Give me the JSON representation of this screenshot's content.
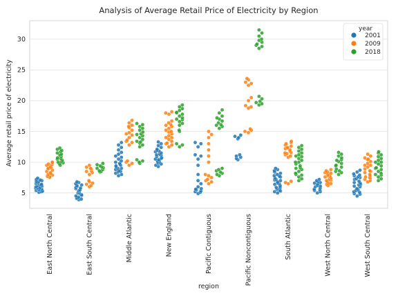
{
  "chart_data": {
    "type": "scatter",
    "subtype": "swarm/strip",
    "title": "Analysis of Average Retail Price of Electricity by Region",
    "xlabel": "region",
    "ylabel": "Average retail price of electricity",
    "ylim": [
      2.5,
      33
    ],
    "yticks": [
      5,
      10,
      15,
      20,
      25,
      30
    ],
    "grid": true,
    "legend": {
      "title": "year",
      "placement": "top-right"
    },
    "categories": [
      "East North Central",
      "East South Central",
      "Middle Atlantic",
      "New England",
      "Pacific Contiguous",
      "Pacific Noncontiguous",
      "South Atlantic",
      "West North Central",
      "West South Central"
    ],
    "series": [
      {
        "name": "2001",
        "color": "#1f77b4",
        "values": [
          [
            5.1,
            5.2,
            5.3,
            5.4,
            5.5,
            5.6,
            5.7,
            5.8,
            5.9,
            6.0,
            6.1,
            6.2,
            6.3,
            6.4,
            6.5,
            6.6,
            6.7,
            6.8,
            6.9,
            7.0,
            7.1,
            7.2,
            7.4,
            5.5,
            6.0,
            6.5,
            5.8,
            6.2
          ],
          [
            3.9,
            4.0,
            4.1,
            4.3,
            4.5,
            4.7,
            4.9,
            5.1,
            5.3,
            5.5,
            5.7,
            5.9,
            6.1,
            6.3,
            6.5,
            6.7,
            6.8,
            4.2,
            4.6,
            5.0,
            5.4,
            5.8,
            6.2
          ],
          [
            7.8,
            8.0,
            8.2,
            8.4,
            8.6,
            8.8,
            9.0,
            9.2,
            9.4,
            9.6,
            9.8,
            10.0,
            10.2,
            10.5,
            10.8,
            11.0,
            11.3,
            11.6,
            12.0,
            12.4,
            12.8,
            13.2,
            8.5,
            9.0,
            9.5
          ],
          [
            9.3,
            9.5,
            9.7,
            9.9,
            10.1,
            10.3,
            10.5,
            10.7,
            10.9,
            11.1,
            11.3,
            11.5,
            11.7,
            11.9,
            12.1,
            12.4,
            12.7,
            13.0,
            13.3,
            10.0,
            10.6,
            11.2,
            11.8,
            9.8,
            10.4
          ],
          [
            4.9,
            5.1,
            5.3,
            5.5,
            5.7,
            6.0,
            6.5,
            7.0,
            8.0,
            9.5,
            10.5,
            11.2,
            12.5,
            13.0,
            13.2,
            5.2,
            5.6,
            11.0
          ],
          [
            10.4,
            10.6,
            10.8,
            11.0,
            11.2,
            13.8,
            14.0,
            14.2,
            14.4
          ],
          [
            5.0,
            5.2,
            5.4,
            5.6,
            5.8,
            6.0,
            6.2,
            6.4,
            6.6,
            6.8,
            7.0,
            7.2,
            7.4,
            7.6,
            7.8,
            8.0,
            8.2,
            8.4,
            8.6,
            8.8,
            9.0,
            5.3,
            5.9,
            6.5,
            7.1,
            7.7
          ],
          [
            5.0,
            5.2,
            5.4,
            5.6,
            5.8,
            6.0,
            6.2,
            6.4,
            6.6,
            6.8,
            7.0,
            7.2,
            5.5,
            6.1,
            6.7
          ],
          [
            4.5,
            4.8,
            5.1,
            5.4,
            5.7,
            6.0,
            6.3,
            6.6,
            6.9,
            7.2,
            7.5,
            7.8,
            8.1,
            8.4,
            8.7,
            4.9,
            5.5,
            6.1,
            6.7,
            7.3,
            7.9,
            5.2,
            6.4,
            7.6
          ]
        ]
      },
      {
        "name": "2009",
        "color": "#ff7f0e",
        "values": [
          [
            7.5,
            7.7,
            7.9,
            8.1,
            8.3,
            8.5,
            8.7,
            8.9,
            9.1,
            9.3,
            9.5,
            9.7,
            9.9,
            10.0,
            7.6,
            8.0,
            9.0,
            9.6
          ],
          [
            6.0,
            6.2,
            6.4,
            6.6,
            6.8,
            7.0,
            8.0,
            8.3,
            8.6,
            8.9,
            9.2,
            9.5,
            8.5,
            9.0
          ],
          [
            9.5,
            9.8,
            10.0,
            10.2,
            12.8,
            13.2,
            13.6,
            14.0,
            14.4,
            14.8,
            15.2,
            15.6,
            16.0,
            16.4,
            16.8,
            13.4,
            14.6,
            15.8
          ],
          [
            12.5,
            12.8,
            13.1,
            13.4,
            13.7,
            14.0,
            14.3,
            14.6,
            14.9,
            15.2,
            15.5,
            15.8,
            16.1,
            16.4,
            16.7,
            17.8,
            18.0,
            18.2,
            13.0,
            14.0,
            15.0,
            16.0
          ],
          [
            6.5,
            6.8,
            7.0,
            7.2,
            7.5,
            7.8,
            8.0,
            10.0,
            11.0,
            12.0,
            13.0,
            14.0,
            14.5,
            15.0
          ],
          [
            14.8,
            15.0,
            15.2,
            15.4,
            18.8,
            19.0,
            19.2,
            20.0,
            20.5,
            22.5,
            23.0,
            23.4,
            23.6,
            22.8
          ],
          [
            6.5,
            6.7,
            6.9,
            10.8,
            11.0,
            11.2,
            11.4,
            11.6,
            11.8,
            12.0,
            12.2,
            12.4,
            12.6,
            12.8,
            13.0,
            13.2,
            13.4,
            11.5,
            12.3
          ],
          [
            6.2,
            6.4,
            6.6,
            6.8,
            7.0,
            7.2,
            7.4,
            7.6,
            7.8,
            8.0,
            8.2,
            8.4,
            8.6,
            8.8,
            6.5,
            7.1,
            7.7,
            8.3
          ],
          [
            6.8,
            7.0,
            7.2,
            7.4,
            7.6,
            7.8,
            8.0,
            8.3,
            8.6,
            8.9,
            9.2,
            9.5,
            9.8,
            10.1,
            10.4,
            10.7,
            11.0,
            11.3,
            7.5,
            8.5,
            9.5,
            10.5
          ]
        ]
      },
      {
        "name": "2018",
        "color": "#2ca02c",
        "values": [
          [
            9.5,
            9.7,
            9.9,
            10.1,
            10.3,
            10.5,
            10.7,
            10.9,
            11.1,
            11.3,
            11.5,
            11.7,
            11.9,
            12.1,
            12.3,
            10.0,
            10.6,
            11.2
          ],
          [
            8.4,
            8.6,
            8.8,
            9.0,
            9.2,
            9.4,
            9.6,
            9.8,
            8.5,
            9.1
          ],
          [
            9.8,
            10.0,
            10.2,
            10.4,
            12.5,
            12.8,
            13.1,
            13.4,
            13.7,
            14.0,
            14.3,
            14.6,
            14.9,
            15.2,
            15.5,
            15.8,
            16.1,
            16.3,
            13.3,
            14.5
          ],
          [
            12.5,
            12.8,
            13.0,
            15.0,
            15.2,
            16.0,
            16.3,
            16.6,
            16.9,
            17.2,
            17.5,
            17.8,
            18.1,
            18.4,
            18.7,
            19.0,
            19.3,
            17.0,
            18.0
          ],
          [
            7.8,
            8.0,
            8.2,
            8.4,
            8.6,
            8.8,
            9.0,
            15.5,
            15.8,
            16.1,
            16.4,
            16.7,
            17.0,
            17.5,
            18.0,
            18.5,
            16.0,
            17.2
          ],
          [
            19.3,
            19.5,
            19.7,
            19.9,
            20.3,
            20.7,
            28.5,
            28.8,
            29.0,
            29.2,
            29.5,
            30.0,
            30.5,
            31.0,
            31.5,
            29.8
          ],
          [
            7.0,
            7.3,
            7.6,
            7.9,
            8.2,
            8.5,
            8.8,
            9.1,
            9.4,
            9.7,
            10.0,
            10.3,
            10.6,
            10.9,
            11.2,
            11.5,
            11.8,
            12.1,
            12.4,
            12.7,
            8.0,
            9.0,
            10.0,
            11.0
          ],
          [
            8.0,
            8.3,
            8.6,
            8.9,
            9.2,
            9.5,
            9.8,
            10.1,
            10.4,
            10.7,
            11.0,
            11.3,
            11.6,
            8.5,
            9.4,
            10.3
          ],
          [
            7.0,
            7.3,
            7.6,
            7.9,
            8.2,
            8.5,
            8.8,
            9.1,
            9.4,
            9.7,
            10.0,
            10.3,
            10.6,
            10.9,
            11.2,
            11.5,
            11.7,
            8.0,
            9.0,
            10.0
          ]
        ]
      }
    ]
  }
}
